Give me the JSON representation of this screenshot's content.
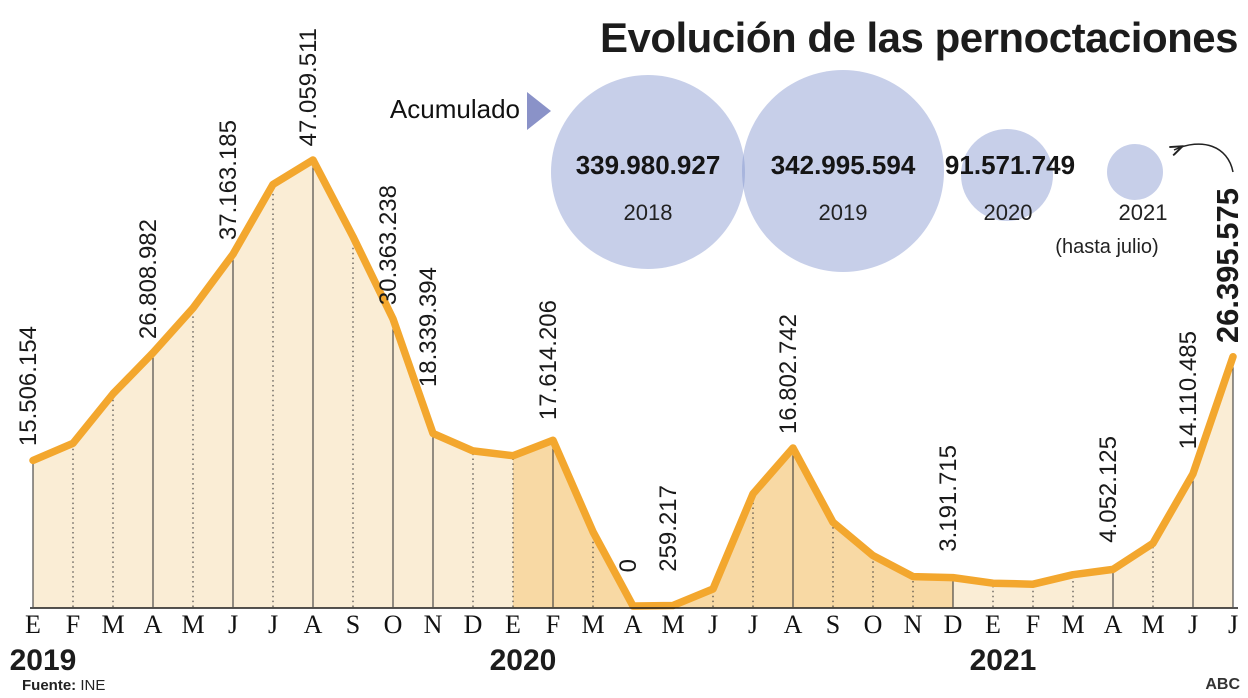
{
  "title": "Evolución de las pernoctaciones",
  "accumulated": {
    "label": "Acumulado",
    "bubbles": [
      {
        "year": "2018",
        "value": "339.980.927"
      },
      {
        "year": "2019",
        "value": "342.995.594"
      },
      {
        "year": "2020",
        "value": "91.571.749"
      },
      {
        "year": "2021",
        "value": "",
        "note": "(hasta julio)"
      }
    ]
  },
  "footer": {
    "source_label": "Fuente:",
    "source": "INE",
    "credit": "ABC"
  },
  "chart_data": {
    "type": "area",
    "x": [
      "E",
      "F",
      "M",
      "A",
      "M",
      "J",
      "J",
      "A",
      "S",
      "O",
      "N",
      "D",
      "E",
      "F",
      "M",
      "A",
      "M",
      "J",
      "J",
      "A",
      "S",
      "O",
      "N",
      "D",
      "E",
      "F",
      "M",
      "A",
      "M",
      "J",
      "J"
    ],
    "years": [
      {
        "label": "2019",
        "start": 0
      },
      {
        "label": "2020",
        "start": 12
      },
      {
        "label": "2021",
        "start": 24
      }
    ],
    "values": [
      15506154,
      17300000,
      22500000,
      26808982,
      31500000,
      37163185,
      44500000,
      47059511,
      39000000,
      30363238,
      18339394,
      16500000,
      16000000,
      17614206,
      8000000,
      0,
      259217,
      2000000,
      12000000,
      16802742,
      9000000,
      5500000,
      3300000,
      3191715,
      2600000,
      2500000,
      3500000,
      4052125,
      6800000,
      14110485,
      26395575
    ],
    "point_labels": [
      {
        "i": 0,
        "text": "15.506.154"
      },
      {
        "i": 3,
        "text": "26.808.982"
      },
      {
        "i": 5,
        "text": "37.163.185"
      },
      {
        "i": 7,
        "text": "47.059.511"
      },
      {
        "i": 9,
        "text": "30.363.238"
      },
      {
        "i": 10,
        "text": "18.339.394"
      },
      {
        "i": 13,
        "text": "17.614.206"
      },
      {
        "i": 15,
        "text": "0"
      },
      {
        "i": 16,
        "text": "259.217"
      },
      {
        "i": 19,
        "text": "16.802.742"
      },
      {
        "i": 23,
        "text": "3.191.715"
      },
      {
        "i": 27,
        "text": "4.052.125"
      },
      {
        "i": 29,
        "text": "14.110.485"
      },
      {
        "i": 30,
        "text": "26.395.575",
        "bold": true
      }
    ],
    "segments": [
      {
        "from": 0,
        "to": 12,
        "shade": "light"
      },
      {
        "from": 12,
        "to": 23,
        "shade": "dark"
      },
      {
        "from": 23,
        "to": 30,
        "shade": "light"
      }
    ],
    "ylim": [
      0,
      47059511
    ],
    "grid": "vertical-per-month",
    "legend_position": "none",
    "colors": {
      "line": "#F3A72E",
      "fill_light": "#FAEDD5",
      "fill_dark": "#F8D9A4",
      "bubble_base": "rgba(131,148,206,0.45)",
      "pointer": "#8A92C8",
      "axis": "#1a1a1a"
    }
  }
}
